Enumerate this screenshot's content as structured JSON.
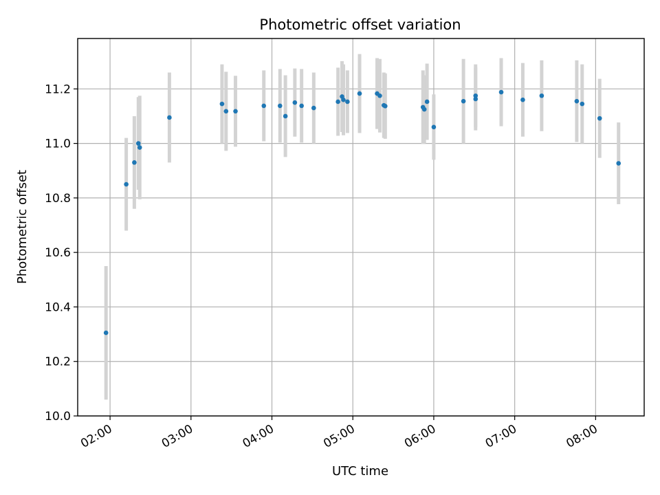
{
  "chart_data": {
    "type": "scatter",
    "title": "Photometric offset variation",
    "xlabel": "UTC time",
    "ylabel": "Photometric offset",
    "xlim": [
      "01:36",
      "08:36"
    ],
    "ylim": [
      10.0,
      11.385
    ],
    "grid": true,
    "x_ticks": [
      "02:00",
      "03:00",
      "04:00",
      "05:00",
      "06:00",
      "07:00",
      "08:00"
    ],
    "y_ticks": [
      "10.0",
      "10.2",
      "10.4",
      "10.6",
      "10.8",
      "11.0",
      "11.2"
    ],
    "colors": {
      "points": "#1f77b4",
      "errorbars": "#d3d3d3",
      "grid": "#b0b0b0"
    },
    "series": [
      {
        "points": [
          {
            "x": "01:57",
            "y": 10.305,
            "err": 0.245
          },
          {
            "x": "02:12",
            "y": 10.85,
            "err": 0.17
          },
          {
            "x": "02:18",
            "y": 10.93,
            "err": 0.17
          },
          {
            "x": "02:21",
            "y": 11.0,
            "err": 0.17
          },
          {
            "x": "02:22",
            "y": 10.985,
            "err": 0.19
          },
          {
            "x": "02:44",
            "y": 11.095,
            "err": 0.165
          },
          {
            "x": "03:23",
            "y": 11.145,
            "err": 0.145
          },
          {
            "x": "03:26",
            "y": 11.118,
            "err": 0.145
          },
          {
            "x": "03:33",
            "y": 11.118,
            "err": 0.13
          },
          {
            "x": "03:54",
            "y": 11.138,
            "err": 0.13
          },
          {
            "x": "04:06",
            "y": 11.138,
            "err": 0.135
          },
          {
            "x": "04:10",
            "y": 11.1,
            "err": 0.15
          },
          {
            "x": "04:17",
            "y": 11.15,
            "err": 0.125
          },
          {
            "x": "04:22",
            "y": 11.138,
            "err": 0.135
          },
          {
            "x": "04:31",
            "y": 11.13,
            "err": 0.13
          },
          {
            "x": "04:49",
            "y": 11.153,
            "err": 0.125
          },
          {
            "x": "04:52",
            "y": 11.172,
            "err": 0.13
          },
          {
            "x": "04:53",
            "y": 11.16,
            "err": 0.13
          },
          {
            "x": "04:56",
            "y": 11.153,
            "err": 0.115
          },
          {
            "x": "05:05",
            "y": 11.183,
            "err": 0.145
          },
          {
            "x": "05:18",
            "y": 11.183,
            "err": 0.13
          },
          {
            "x": "05:20",
            "y": 11.175,
            "err": 0.135
          },
          {
            "x": "05:23",
            "y": 11.14,
            "err": 0.12
          },
          {
            "x": "05:24",
            "y": 11.137,
            "err": 0.12
          },
          {
            "x": "05:52",
            "y": 11.133,
            "err": 0.135
          },
          {
            "x": "05:53",
            "y": 11.125,
            "err": 0.125
          },
          {
            "x": "05:55",
            "y": 11.153,
            "err": 0.14
          },
          {
            "x": "06:00",
            "y": 11.06,
            "err": 0.12
          },
          {
            "x": "06:22",
            "y": 11.155,
            "err": 0.155
          },
          {
            "x": "06:31",
            "y": 11.163,
            "err": 0.115
          },
          {
            "x": "06:31",
            "y": 11.175,
            "err": 0.115
          },
          {
            "x": "06:50",
            "y": 11.188,
            "err": 0.125
          },
          {
            "x": "07:06",
            "y": 11.16,
            "err": 0.135
          },
          {
            "x": "07:20",
            "y": 11.175,
            "err": 0.13
          },
          {
            "x": "07:46",
            "y": 11.155,
            "err": 0.15
          },
          {
            "x": "07:50",
            "y": 11.145,
            "err": 0.145
          },
          {
            "x": "08:03",
            "y": 11.092,
            "err": 0.145
          },
          {
            "x": "08:17",
            "y": 10.927,
            "err": 0.15
          }
        ]
      }
    ]
  }
}
